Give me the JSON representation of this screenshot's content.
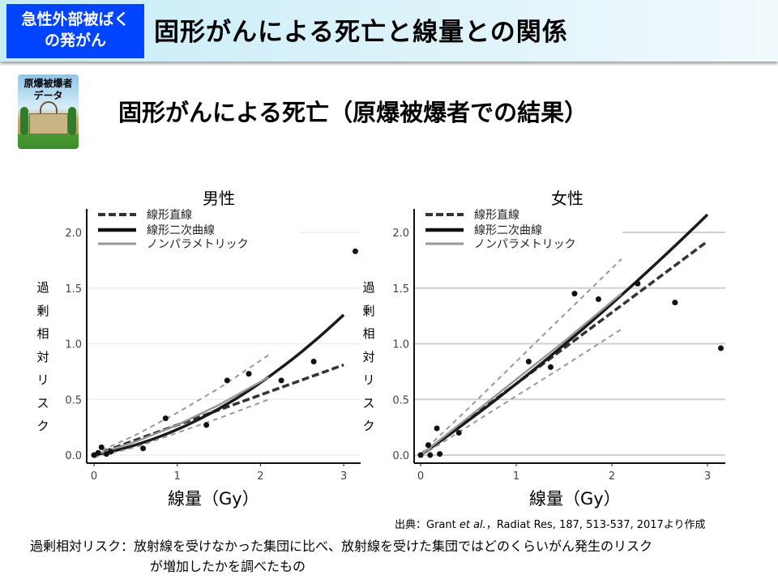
{
  "header": {
    "tag_line1": "急性外部被ばく",
    "tag_line2": "の発がん",
    "title": "固形がんによる死亡と線量との関係"
  },
  "badge": {
    "text_line1": "原爆被爆者",
    "text_line2": "データ"
  },
  "subtitle": "固形がんによる死亡（原爆被爆者での結果）",
  "ylabel_chars": [
    "過",
    "剰",
    "相",
    "対",
    "リ",
    "ス",
    "ク"
  ],
  "source": {
    "prefix": "出典：Grant ",
    "italic": "et al.",
    "suffix": "，Radiat Res, 187, 513-537, 2017より作成"
  },
  "note": {
    "line1": "過剰相対リスク：放射線を受けなかった集団に比べ、放射線を受けた集団ではどのくらいがん発生のリスク",
    "line2": "が増加したかを調べたもの"
  },
  "chart_data": [
    {
      "type": "line",
      "title": "男性",
      "xlabel": "線量（Gy）",
      "ylabel": "過剰相対リスク",
      "xlim": [
        -0.1,
        3.2
      ],
      "ylim": [
        -0.05,
        2.2
      ],
      "xticks": [
        "0",
        "1",
        "2",
        "3"
      ],
      "yticks": [
        "0.0",
        "0.5",
        "1.0",
        "1.5",
        "2.0"
      ],
      "grid": true,
      "gridColor": "#eeeeee",
      "legend_position": "top-left",
      "legend": [
        "線形直線",
        "線形二次曲線",
        "ノンパラメトリック"
      ],
      "points": [
        [
          0,
          0
        ],
        [
          0.05,
          0.02
        ],
        [
          0.09,
          0.07
        ],
        [
          0.15,
          0.01
        ],
        [
          0.2,
          0.03
        ],
        [
          0.59,
          0.06
        ],
        [
          0.86,
          0.33
        ],
        [
          1.35,
          0.27
        ],
        [
          1.6,
          0.67
        ],
        [
          1.86,
          0.73
        ],
        [
          2.25,
          0.67
        ],
        [
          2.64,
          0.84
        ],
        [
          3.14,
          1.83
        ]
      ],
      "series": [
        {
          "name": "線形直線",
          "style": "dashed",
          "color": "#333333",
          "fn": "linear",
          "coef": [
            0.27
          ],
          "xmax": 3
        },
        {
          "name": "線形二次曲線",
          "style": "solid",
          "color": "#1a1a1a",
          "fn": "lq",
          "coef": [
            0.135,
            0.095
          ],
          "xmax": 3
        },
        {
          "name": "ノンパラメトリック",
          "style": "solid",
          "color": "#999999",
          "curve": [
            [
              0,
              0
            ],
            [
              0.5,
              0.12
            ],
            [
              1,
              0.27
            ],
            [
              1.5,
              0.45
            ],
            [
              2.1,
              0.7
            ]
          ]
        },
        {
          "style": "ci",
          "color": "#999999",
          "curve": [
            [
              0,
              0.01
            ],
            [
              0.5,
              0.18
            ],
            [
              1,
              0.38
            ],
            [
              1.5,
              0.6
            ],
            [
              2.1,
              0.9
            ]
          ]
        },
        {
          "style": "ci",
          "color": "#999999",
          "curve": [
            [
              0,
              -0.02
            ],
            [
              0.5,
              0.07
            ],
            [
              1,
              0.2
            ],
            [
              1.5,
              0.33
            ],
            [
              2.1,
              0.5
            ]
          ]
        }
      ]
    },
    {
      "type": "line",
      "title": "女性",
      "xlabel": "線量（Gy）",
      "ylabel": "過剰相対リスク",
      "xlim": [
        -0.05,
        3.2
      ],
      "ylim": [
        -0.05,
        2.2
      ],
      "xticks": [
        "0",
        "1",
        "2",
        "3"
      ],
      "yticks": [
        "0.0",
        "0.5",
        "1.0",
        "1.5",
        "2.0"
      ],
      "grid": true,
      "gridColor": "#d0d0d0",
      "legend_position": "top-left",
      "legend": [
        "線形直線",
        "線形二次曲線",
        "ノンパラメトリック"
      ],
      "points": [
        [
          0,
          0
        ],
        [
          0.1,
          0
        ],
        [
          0.08,
          0.09
        ],
        [
          0.17,
          0.24
        ],
        [
          0.2,
          0.01
        ],
        [
          0.4,
          0.2
        ],
        [
          1.13,
          0.84
        ],
        [
          1.36,
          0.79
        ],
        [
          1.61,
          1.45
        ],
        [
          1.86,
          1.4
        ],
        [
          2.27,
          1.54
        ],
        [
          2.66,
          1.37
        ],
        [
          3.14,
          0.96
        ]
      ],
      "series": [
        {
          "name": "線形直線",
          "style": "dashed",
          "color": "#333333",
          "fn": "linear",
          "coef": [
            0.64
          ],
          "xmax": 3
        },
        {
          "name": "線形二次曲線",
          "style": "solid",
          "color": "#1a1a1a",
          "fn": "lq",
          "coef": [
            0.6,
            0.04
          ],
          "xmax": 3
        },
        {
          "name": "ノンパラメトリック",
          "style": "solid",
          "color": "#999999",
          "curve": [
            [
              0,
              0
            ],
            [
              0.5,
              0.34
            ],
            [
              1,
              0.68
            ],
            [
              1.5,
              1.02
            ],
            [
              2.1,
              1.45
            ]
          ]
        },
        {
          "style": "ci",
          "color": "#999999",
          "curve": [
            [
              0,
              0.01
            ],
            [
              0.5,
              0.42
            ],
            [
              1,
              0.84
            ],
            [
              1.5,
              1.26
            ],
            [
              2.1,
              1.76
            ]
          ]
        },
        {
          "style": "ci",
          "color": "#999999",
          "curve": [
            [
              0,
              -0.01
            ],
            [
              0.5,
              0.26
            ],
            [
              1,
              0.53
            ],
            [
              1.5,
              0.8
            ],
            [
              2.1,
              1.13
            ]
          ]
        }
      ]
    }
  ]
}
